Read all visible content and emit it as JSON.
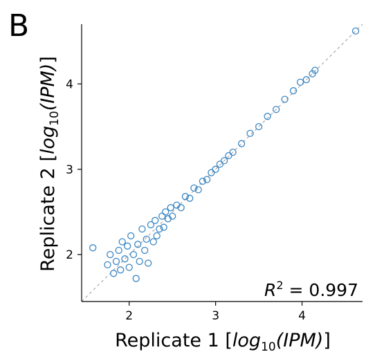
{
  "panel_label": "B",
  "chart_data": {
    "type": "scatter",
    "xlabel": {
      "prefix": "Replicate 1 [",
      "log": "log",
      "sub": "10",
      "inner": "(IPM)",
      "suffix": "]"
    },
    "ylabel": {
      "prefix": "Replicate 2 [",
      "log": "log",
      "sub": "10",
      "inner": "(IPM)",
      "suffix": "]"
    },
    "xlim": [
      1.45,
      4.7
    ],
    "ylim": [
      1.45,
      4.7
    ],
    "xticks": [
      {
        "value": 2,
        "label": "2"
      },
      {
        "value": 3,
        "label": "3"
      },
      {
        "value": 4,
        "label": "4"
      }
    ],
    "yticks": [
      {
        "value": 2,
        "label": "2"
      },
      {
        "value": 3,
        "label": "3"
      },
      {
        "value": 4,
        "label": "4"
      }
    ],
    "annotation": {
      "r_symbol": "R",
      "power": "2",
      "rest": " = 0.997"
    },
    "diagonal": {
      "style": "dashed",
      "color": "#999999",
      "from": [
        1.45,
        1.45
      ],
      "to": [
        4.7,
        4.7
      ]
    },
    "marker": {
      "shape": "open-circle",
      "color": "#3a86c3"
    },
    "points": [
      [
        1.58,
        2.08
      ],
      [
        1.75,
        1.88
      ],
      [
        1.78,
        2.0
      ],
      [
        1.82,
        1.78
      ],
      [
        1.85,
        1.92
      ],
      [
        1.88,
        2.05
      ],
      [
        1.9,
        1.82
      ],
      [
        1.92,
        2.15
      ],
      [
        1.95,
        1.95
      ],
      [
        1.98,
        2.1
      ],
      [
        2.0,
        1.85
      ],
      [
        2.02,
        2.22
      ],
      [
        2.05,
        2.0
      ],
      [
        2.08,
        1.72
      ],
      [
        2.1,
        2.12
      ],
      [
        2.12,
        1.92
      ],
      [
        2.15,
        2.3
      ],
      [
        2.18,
        2.05
      ],
      [
        2.2,
        2.18
      ],
      [
        2.22,
        1.9
      ],
      [
        2.25,
        2.35
      ],
      [
        2.28,
        2.15
      ],
      [
        2.3,
        2.4
      ],
      [
        2.32,
        2.22
      ],
      [
        2.35,
        2.3
      ],
      [
        2.38,
        2.45
      ],
      [
        2.4,
        2.32
      ],
      [
        2.42,
        2.5
      ],
      [
        2.45,
        2.42
      ],
      [
        2.48,
        2.55
      ],
      [
        2.5,
        2.45
      ],
      [
        2.55,
        2.58
      ],
      [
        2.6,
        2.55
      ],
      [
        2.65,
        2.68
      ],
      [
        2.7,
        2.66
      ],
      [
        2.75,
        2.78
      ],
      [
        2.8,
        2.76
      ],
      [
        2.85,
        2.86
      ],
      [
        2.9,
        2.88
      ],
      [
        2.95,
        2.96
      ],
      [
        3.0,
        3.0
      ],
      [
        3.05,
        3.06
      ],
      [
        3.1,
        3.1
      ],
      [
        3.15,
        3.16
      ],
      [
        3.2,
        3.2
      ],
      [
        3.3,
        3.3
      ],
      [
        3.4,
        3.42
      ],
      [
        3.5,
        3.5
      ],
      [
        3.6,
        3.62
      ],
      [
        3.7,
        3.7
      ],
      [
        3.8,
        3.82
      ],
      [
        3.9,
        3.92
      ],
      [
        3.98,
        4.02
      ],
      [
        4.05,
        4.05
      ],
      [
        4.12,
        4.12
      ],
      [
        4.15,
        4.16
      ],
      [
        4.62,
        4.62
      ]
    ]
  }
}
